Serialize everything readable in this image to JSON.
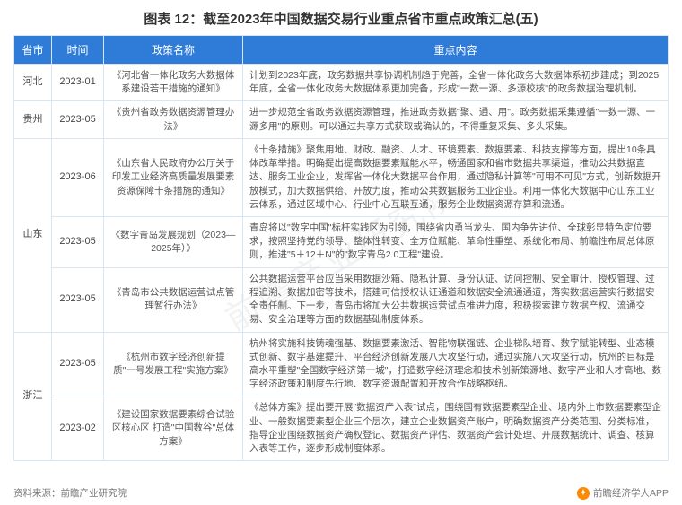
{
  "title": "图表 12：截至2023年中国数据交易行业重点省市重点政策汇总(五)",
  "watermark": "前瞻产业研究院",
  "columns": [
    "省市",
    "时间",
    "政策名称",
    "重点内容"
  ],
  "col_widths": {
    "province": 42,
    "time": 58,
    "policy": 155
  },
  "header_bg": "#2f7bd8",
  "header_fg": "#ffffff",
  "border_color": "#d8e5f3",
  "text_color": "#444444",
  "content_fontsize": 10.5,
  "header_fontsize": 12,
  "title_fontsize": 15,
  "rows": [
    {
      "province": "河北",
      "rowspan": 1,
      "time": "2023-01",
      "policy": "《河北省一体化政务大数据体系建设若干措施的通知》",
      "content": "计划到2023年底，政务数据共享协调机制趋于完善，全省一体化政务大数据体系初步建成；到2025年底，全省一体化政务大数据体系更加完备，形成\"一数一源、多源校核\"的政务数据治理机制。"
    },
    {
      "province": "贵州",
      "rowspan": 1,
      "time": "2023-05",
      "policy": "《贵州省政务数据资源管理办法》",
      "content": "进一步规范全省政务数据资源管理，推进政务数据\"聚、通、用\"。政务数据采集遵循\"一数一源、一源多用\"的原则。可以通过共享方式获取或确认的，不得重复采集、多头采集。"
    },
    {
      "province": "山东",
      "rowspan": 3,
      "time": "2023-06",
      "policy": "《山东省人民政府办公厅关于印发工业经济高质量发展要素资源保障十条措施的通知》",
      "content": "《十条措施》聚焦用地、财政、融资、人才、环境要素、数据要素、科技支撑等方面，提出10条具体改革举措。明确提出提高数据要素赋能水平，畅通国家和省市数据共享渠道，推动公共数据直达、服务工业企业，发挥省一体化大数据平台作用，通过隐私计算等\"可用不可见\"方式，创新数据开放模式，加大数据供给、开放力度，推动公共数据服务工业企业。利用一体化大数据中心山东工业云体系，通过区域中心、行业中心互联互通，服务企业数据资源存算和流通。"
    },
    {
      "province": "",
      "rowspan": 0,
      "time": "2023-05",
      "policy": "《数字青岛发展规划（2023—2025年）》",
      "content": "青岛将以\"数字中国\"标杆实践区为引领，围绕省内勇当龙头、国内争先进位、全球彰显特色定位要求，按照坚持党的领导、整体性转变、全方位赋能、革命性重塑、系统化布局、前瞻性布局总体原则，推进\"5＋12＋N\"的\"数字青岛2.0工程\"建设。"
    },
    {
      "province": "",
      "rowspan": 0,
      "time": "2023-05",
      "policy": "《青岛市公共数据运营试点管理暂行办法》",
      "content": "公共数据运营平台应当采用数据沙箱、隐私计算、身份认证、访问控制、安全审计、授权管理、过程追溯、数据加密等技术，搭建可信授权认证通道和数据安全流通通道，落实数据运营实行数据安全责任制。下一步，青岛市将加大公共数据运营试点推进力度，积极探索建立数据产权、流通交易、安全治理等方面的数据基础制度体系。"
    },
    {
      "province": "浙江",
      "rowspan": 2,
      "time": "2023-05",
      "policy": "《杭州市数字经济创新提质\"一号发展工程\"实施方案》",
      "content": "杭州将实施科技铸魂强基、数据要素激活、智能物联强链、企业梯队培育、数字赋能转型、业态模式创新、数字基建提升、平台经济创新发展八大攻坚行动，通过实施八大攻坚行动，杭州的目标是高水平重塑\"全国数字经济第一城\"，打造数字经济理念和技术创新策源地、数字产业和人才高地、数字经济政策和制度先行地、数字资源配置和开放合作战略枢纽。"
    },
    {
      "province": "",
      "rowspan": 0,
      "time": "2023-02",
      "policy": "《建设国家数据要素综合试验区核心区 打造\"中国数谷\"总体方案》",
      "content": "《总体方案》提出要开展\"数据资产入表\"试点，围绕国有数据要素型企业、境内外上市数据要素型企业、一般数据要素型企业三个层次，建立企业数据资产账户，明确数据资产分类范围、分类标准，指导企业围绕数据资产确权登记、数据资产评估、数据资产会计处理、开展数据统计、调查、核算入表等工作，逐步形成制度体系。"
    }
  ],
  "footer_left": "资料来源：前瞻产业研究院",
  "footer_right": "前瞻经济学人APP",
  "logo_bg": "#ff8a00",
  "logo_text": "✦"
}
